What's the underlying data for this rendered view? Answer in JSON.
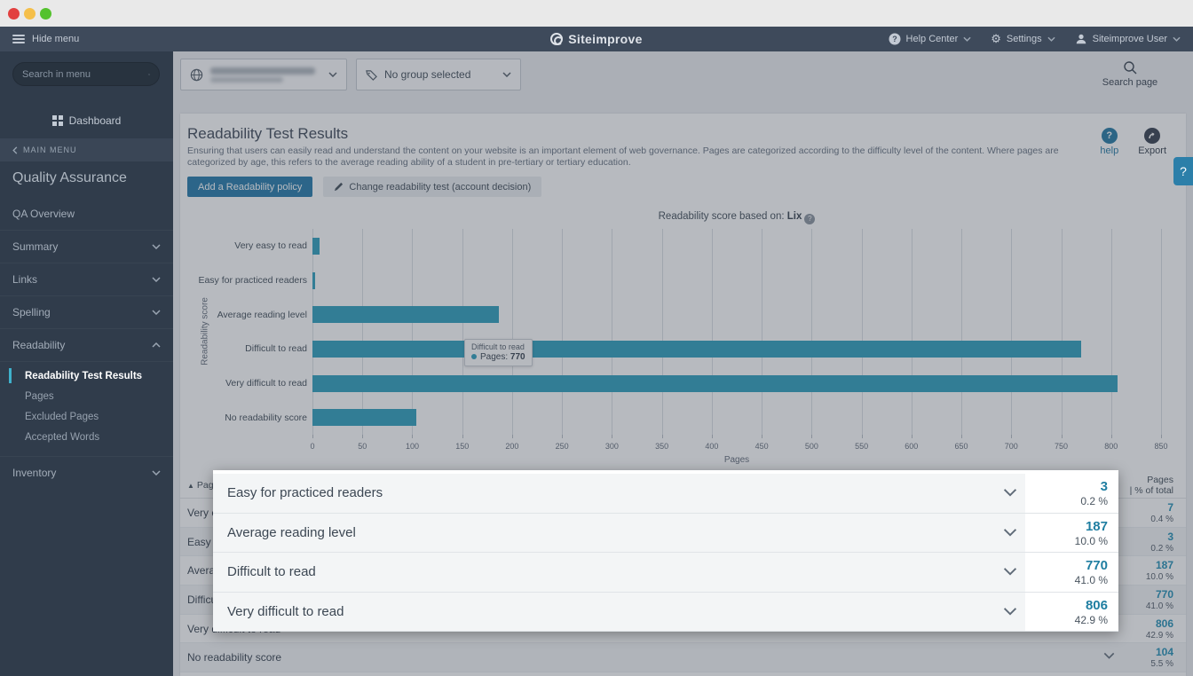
{
  "navbar": {
    "hide_menu": "Hide menu",
    "logo": "Siteimprove",
    "help_center": "Help Center",
    "settings": "Settings",
    "user": "Siteimprove User"
  },
  "sidebar": {
    "search_placeholder": "Search in menu",
    "dashboard": "Dashboard",
    "main_menu": "MAIN MENU",
    "section": "Quality Assurance",
    "items": [
      {
        "label": "QA Overview",
        "expandable": false
      },
      {
        "label": "Summary",
        "expandable": true,
        "expanded": false
      },
      {
        "label": "Links",
        "expandable": true,
        "expanded": false
      },
      {
        "label": "Spelling",
        "expandable": true,
        "expanded": false
      },
      {
        "label": "Readability",
        "expandable": true,
        "expanded": true,
        "children": [
          {
            "label": "Readability Test Results",
            "active": true
          },
          {
            "label": "Pages",
            "active": false
          },
          {
            "label": "Excluded Pages",
            "active": false
          },
          {
            "label": "Accepted Words",
            "active": false
          }
        ]
      },
      {
        "label": "Inventory",
        "expandable": true,
        "expanded": false
      }
    ]
  },
  "filters": {
    "site_selector_redacted": true,
    "group_selector": "No group selected"
  },
  "search_page_label": "Search page",
  "page": {
    "title": "Readability Test Results",
    "description": "Ensuring that users can easily read and understand the content on your website is an important element of web governance. Pages are categorized according to the difficulty level of the content. Where pages are categorized by age, this refers to the average reading ability of a student in pre-tertiary or tertiary education.",
    "help_label": "help",
    "export_label": "Export",
    "primary_button": "Add a Readability policy",
    "secondary_button": "Change readability test (account decision)"
  },
  "chart_data": {
    "type": "bar",
    "orientation": "horizontal",
    "title_prefix": "Readability score based on: ",
    "title_metric": "Lix",
    "categories": [
      "Very easy to read",
      "Easy for practiced readers",
      "Average reading level",
      "Difficult to read",
      "Very difficult to read",
      "No readability score"
    ],
    "values": [
      7,
      3,
      187,
      770,
      806,
      104
    ],
    "xlabel": "Pages",
    "ylabel": "Readability score",
    "xlim": [
      0,
      850
    ],
    "xtick_step": 50,
    "grid": true,
    "bar_color": "#36a3c0",
    "tooltip": {
      "category": "Difficult to read",
      "series": "Pages",
      "value": "770"
    }
  },
  "table": {
    "sort_icon": "▲",
    "col_left": "Page readability level",
    "col_right_line1": "Pages",
    "col_right_line2": "| % of total",
    "rows": [
      {
        "label": "Very easy to read",
        "pages": "7",
        "pct": "0.4 %"
      },
      {
        "label": "Easy for practiced readers",
        "pages": "3",
        "pct": "0.2 %"
      },
      {
        "label": "Average reading level",
        "pages": "187",
        "pct": "10.0 %"
      },
      {
        "label": "Difficult to read",
        "pages": "770",
        "pct": "41.0 %"
      },
      {
        "label": "Very difficult to read",
        "pages": "806",
        "pct": "42.9 %"
      },
      {
        "label": "No readability score",
        "pages": "104",
        "pct": "5.5 %"
      }
    ]
  },
  "spotlight": {
    "rows": [
      {
        "label": "Easy for practiced readers",
        "pages": "3",
        "pct": "0.2 %"
      },
      {
        "label": "Average reading level",
        "pages": "187",
        "pct": "10.0 %"
      },
      {
        "label": "Difficult to read",
        "pages": "770",
        "pct": "41.0 %"
      },
      {
        "label": "Very difficult to read",
        "pages": "806",
        "pct": "42.9 %"
      }
    ]
  },
  "floating_help": "?",
  "colors": {
    "accent_teal": "#36a3c0",
    "link_blue": "#2d7fa8",
    "number_teal": "#1f7ea1",
    "navbar_bg": "#3e4a5b",
    "sidebar_bg": "#303c4b"
  }
}
